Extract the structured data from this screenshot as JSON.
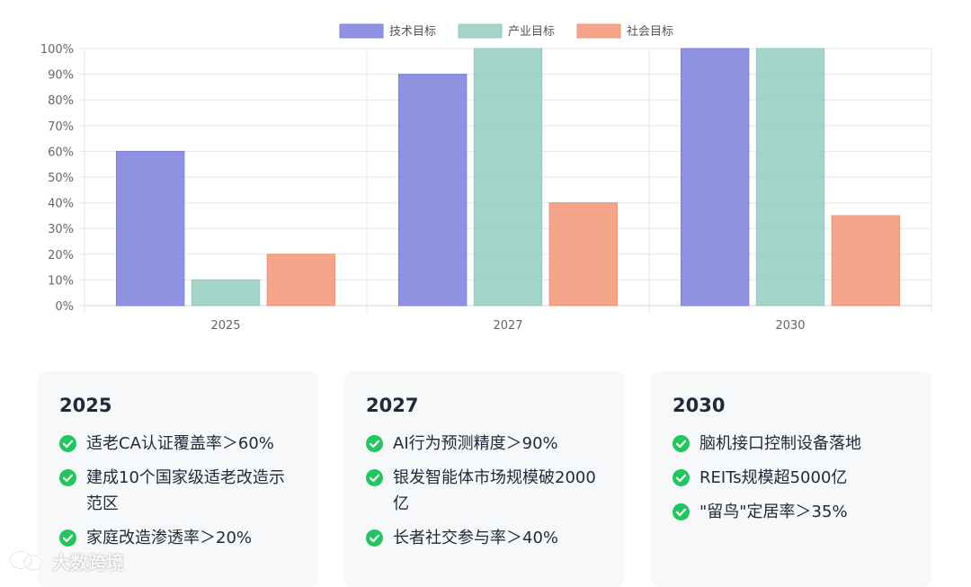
{
  "chart_data": {
    "type": "bar",
    "categories": [
      "2025",
      "2027",
      "2030"
    ],
    "series": [
      {
        "name": "技术目标",
        "values": [
          60,
          90,
          100
        ],
        "color": "#7b7fdc"
      },
      {
        "name": "产业目标",
        "values": [
          10,
          100,
          100
        ],
        "color": "#93cbbf"
      },
      {
        "name": "社会目标",
        "values": [
          20,
          40,
          35
        ],
        "color": "#f29474"
      }
    ],
    "ylim": [
      0,
      100
    ],
    "yticks": [
      "0%",
      "10%",
      "20%",
      "30%",
      "40%",
      "50%",
      "60%",
      "70%",
      "80%",
      "90%",
      "100%"
    ],
    "grid": true,
    "legend": "top-center"
  },
  "cards": [
    {
      "year": "2025",
      "items": [
        "适老CA认证覆盖率＞60%",
        "建成10个国家级适老改造示范区",
        "家庭改造渗透率＞20%"
      ]
    },
    {
      "year": "2027",
      "items": [
        "AI行为预测精度＞90%",
        "银发智能体市场规模破2000亿",
        "长者社交参与率＞40%"
      ]
    },
    {
      "year": "2030",
      "items": [
        "脑机接口控制设备落地",
        "REITs规模超5000亿",
        "\"留鸟\"定居率＞35%"
      ]
    }
  ],
  "watermark": {
    "text": "大数跨境",
    "icon": "wechat-logo-icon"
  },
  "colors": {
    "check": "#22c55e",
    "card_bg": "#f6f8fa",
    "grid": "#e5e7eb"
  }
}
